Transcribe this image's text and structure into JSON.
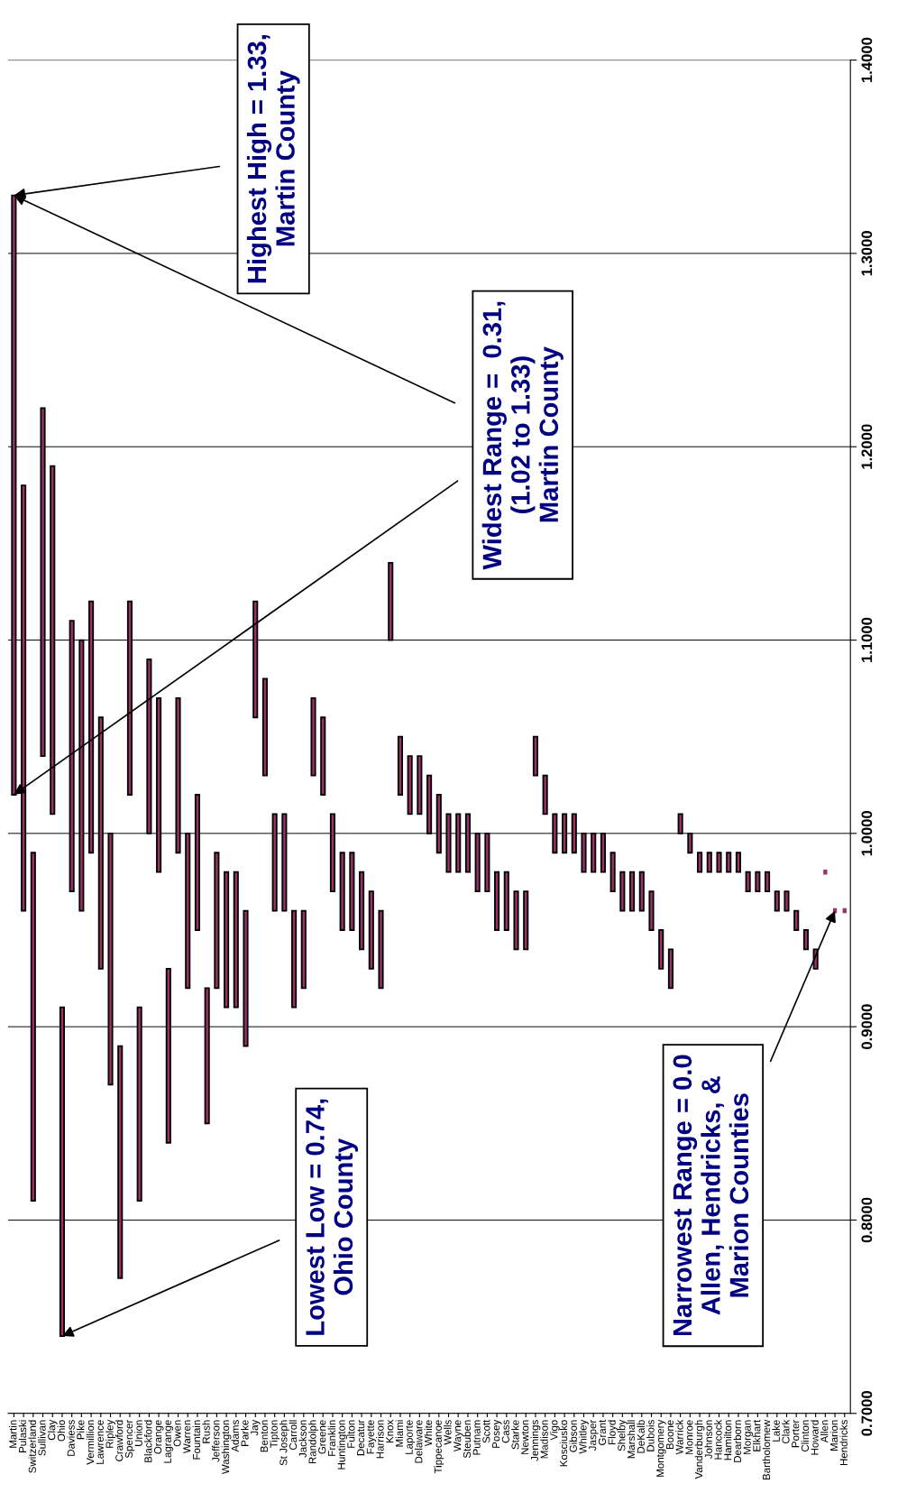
{
  "chart_data": {
    "type": "bar",
    "categories": [
      "Martin",
      "Pulaski",
      "Switzerland",
      "Sullivan",
      "Clay",
      "Ohio",
      "Daviess",
      "Pike",
      "Vermillion",
      "Lawrence",
      "Ripley",
      "Crawford",
      "Spencer",
      "Union",
      "Blackford",
      "Orange",
      "Lagrange",
      "Owen",
      "Warren",
      "Fountain",
      "Rush",
      "Jefferson",
      "Washington",
      "Adams",
      "Parke",
      "Jay",
      "Benton",
      "Tipton",
      "St Joseph",
      "Carroll",
      "Jackson",
      "Randolph",
      "Greene",
      "Franklin",
      "Huntington",
      "Fulton",
      "Decatur",
      "Fayette",
      "Harrison",
      "Knox",
      "Miami",
      "Laporte",
      "Delaware",
      "White",
      "Tippecanoe",
      "Wells",
      "Wayne",
      "Steuben",
      "Putnam",
      "Scott",
      "Posey",
      "Cass",
      "Starke",
      "Newton",
      "Jennings",
      "Madison",
      "Vigo",
      "Kosciusko",
      "Gibson",
      "Whitley",
      "Jasper",
      "Grant",
      "Floyd",
      "Shelby",
      "Marshall",
      "DeKalb",
      "Dubois",
      "Montgomery",
      "Boone",
      "Warrick",
      "Monroe",
      "Vanderburgh",
      "Johnson",
      "Hancock",
      "Hamilton",
      "Dearborn",
      "Morgan",
      "Elkhart",
      "Bartholomew",
      "Lake",
      "Clark",
      "Porter",
      "Clinton",
      "Howard",
      "Allen",
      "Marion",
      "Hendricks"
    ],
    "base": [
      1.02,
      0.96,
      0.81,
      1.04,
      1.01,
      0.74,
      0.97,
      0.96,
      0.99,
      0.93,
      0.87,
      0.77,
      1.02,
      0.81,
      1.0,
      0.98,
      0.84,
      0.99,
      0.92,
      0.95,
      0.85,
      0.92,
      0.91,
      0.91,
      0.89,
      1.06,
      1.03,
      0.96,
      0.96,
      0.91,
      0.92,
      1.03,
      1.02,
      0.97,
      0.95,
      0.95,
      0.94,
      0.93,
      0.92,
      1.1,
      1.02,
      1.01,
      1.01,
      1.0,
      0.99,
      0.98,
      0.98,
      0.98,
      0.97,
      0.97,
      0.95,
      0.95,
      0.94,
      0.94,
      1.03,
      1.01,
      0.99,
      0.99,
      0.99,
      0.98,
      0.98,
      0.98,
      0.97,
      0.96,
      0.96,
      0.96,
      0.95,
      0.93,
      0.92,
      1.0,
      0.99,
      0.98,
      0.98,
      0.98,
      0.98,
      0.98,
      0.97,
      0.97,
      0.97,
      0.96,
      0.96,
      0.95,
      0.94,
      0.93,
      0.98,
      0.96,
      0.96
    ],
    "values": [
      0.31,
      0.22,
      0.18,
      0.18,
      0.18,
      0.17,
      0.14,
      0.14,
      0.13,
      0.13,
      0.13,
      0.12,
      0.1,
      0.1,
      0.09,
      0.09,
      0.09,
      0.08,
      0.08,
      0.07,
      0.07,
      0.07,
      0.07,
      0.07,
      0.07,
      0.06,
      0.05,
      0.05,
      0.05,
      0.05,
      0.04,
      0.04,
      0.04,
      0.04,
      0.04,
      0.04,
      0.04,
      0.04,
      0.04,
      0.04,
      0.03,
      0.03,
      0.03,
      0.03,
      0.03,
      0.03,
      0.03,
      0.03,
      0.03,
      0.03,
      0.03,
      0.03,
      0.03,
      0.03,
      0.02,
      0.02,
      0.02,
      0.02,
      0.02,
      0.02,
      0.02,
      0.02,
      0.02,
      0.02,
      0.02,
      0.02,
      0.02,
      0.02,
      0.02,
      0.01,
      0.01,
      0.01,
      0.01,
      0.01,
      0.01,
      0.01,
      0.01,
      0.01,
      0.01,
      0.01,
      0.01,
      0.01,
      0.01,
      0.01,
      0,
      0,
      0
    ],
    "color": "#993366",
    "ylim": [
      0.7,
      1.4
    ],
    "yticks": [
      {
        "value": 0.7,
        "label": "0.7000"
      },
      {
        "value": 0.8,
        "label": "0.8000"
      },
      {
        "value": 0.9,
        "label": "0.9000"
      },
      {
        "value": 1.0,
        "label": "1.0000"
      },
      {
        "value": 1.1,
        "label": "1.1000"
      },
      {
        "value": 1.2,
        "label": "1.2000"
      },
      {
        "value": 1.3,
        "label": "1.3000"
      },
      {
        "value": 1.4,
        "label": "1.4000"
      }
    ],
    "grid": "y",
    "annotations": [
      {
        "text": "Highest High = 1.33,\nMartin County",
        "x": "Martin",
        "y": 1.33
      },
      {
        "text": "Widest Range =  0.31,\n(1.02 to 1.33)\nMartin County",
        "x": "Martin",
        "y": 1.02
      },
      {
        "text": "Lowest Low = 0.74,\nOhio County",
        "x": "Ohio",
        "y": 0.74
      },
      {
        "text": "Narrowest Range = 0.0\nAllen, Hendricks, &\nMarion Counties",
        "x": "Marion",
        "y": 0.96
      }
    ]
  }
}
